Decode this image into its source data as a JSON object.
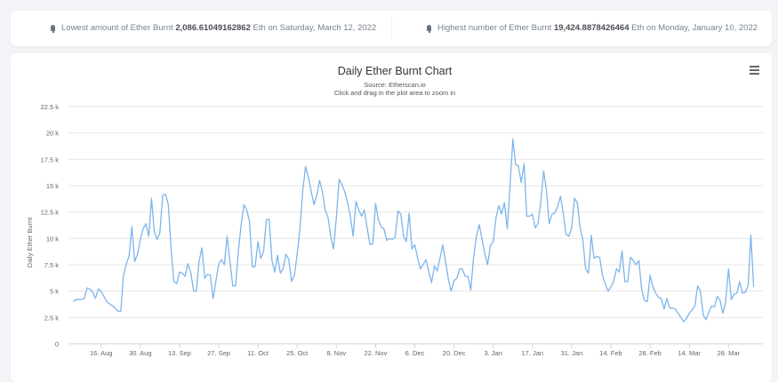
{
  "stats": {
    "lowest": {
      "prefix": "Lowest amount of Ether Burnt",
      "value": "2,086.61049162862",
      "suffix": "Eth on Saturday, March 12, 2022"
    },
    "highest": {
      "prefix": "Highest number of Ether Burnt",
      "value": "19,424.8878426464",
      "suffix": "Eth on Monday, January 10, 2022"
    }
  },
  "chart_data": {
    "type": "line",
    "title": "Daily Ether Burnt Chart",
    "subtitle_source": "Source: Etherscan.io",
    "subtitle_hint": "Click and drag in the plot area to zoom in",
    "ylabel": "Daily Ether Burnt",
    "xlabel": "",
    "ylim": [
      0,
      22500
    ],
    "y_ticks": [
      0,
      2500,
      5000,
      7500,
      10000,
      12500,
      15000,
      17500,
      20000,
      22500
    ],
    "y_tick_labels": [
      "0",
      "2.5 k",
      "5 k",
      "7.5 k",
      "10 k",
      "12.5 k",
      "15 k",
      "17.5 k",
      "20 k",
      "22.5 k"
    ],
    "x_ticks": [
      "2021-08-16",
      "2021-08-30",
      "2021-09-13",
      "2021-09-27",
      "2021-10-11",
      "2021-10-25",
      "2021-11-08",
      "2021-11-22",
      "2021-12-06",
      "2021-12-20",
      "2022-01-03",
      "2022-01-17",
      "2022-01-31",
      "2022-02-14",
      "2022-02-28",
      "2022-03-14",
      "2022-03-28"
    ],
    "x_tick_labels": [
      "16. Aug",
      "30. Aug",
      "13. Sep",
      "27. Sep",
      "11. Oct",
      "25. Oct",
      "8. Nov",
      "22. Nov",
      "6. Dec",
      "20. Dec",
      "3. Jan",
      "17. Jan",
      "31. Jan",
      "14. Feb",
      "28. Feb",
      "14. Mar",
      "28. Mar"
    ],
    "grid": true,
    "legend": "none",
    "line_color": "#7cb5ec",
    "series": [
      {
        "x": [
          "2021-08-06",
          "2021-08-07",
          "2021-08-08",
          "2021-08-09",
          "2021-08-10",
          "2021-08-11",
          "2021-08-12",
          "2021-08-13",
          "2021-08-14",
          "2021-08-15",
          "2021-08-16",
          "2021-08-17",
          "2021-08-18",
          "2021-08-19",
          "2021-08-20",
          "2021-08-21",
          "2021-08-22",
          "2021-08-23",
          "2021-08-24",
          "2021-08-25",
          "2021-08-26",
          "2021-08-27",
          "2021-08-28",
          "2021-08-29",
          "2021-08-30",
          "2021-08-31",
          "2021-09-01",
          "2021-09-02",
          "2021-09-03",
          "2021-09-04",
          "2021-09-05",
          "2021-09-06",
          "2021-09-07",
          "2021-09-08",
          "2021-09-09",
          "2021-09-10",
          "2021-09-11",
          "2021-09-12",
          "2021-09-13",
          "2021-09-14",
          "2021-09-15",
          "2021-09-16",
          "2021-09-17",
          "2021-09-18",
          "2021-09-19",
          "2021-09-20",
          "2021-09-21",
          "2021-09-22",
          "2021-09-23",
          "2021-09-24",
          "2021-09-25",
          "2021-09-26",
          "2021-09-27",
          "2021-09-28",
          "2021-09-29",
          "2021-09-30",
          "2021-10-01",
          "2021-10-02",
          "2021-10-03",
          "2021-10-04",
          "2021-10-05",
          "2021-10-06",
          "2021-10-07",
          "2021-10-08",
          "2021-10-09",
          "2021-10-10",
          "2021-10-11",
          "2021-10-12",
          "2021-10-13",
          "2021-10-14",
          "2021-10-15",
          "2021-10-16",
          "2021-10-17",
          "2021-10-18",
          "2021-10-19",
          "2021-10-20",
          "2021-10-21",
          "2021-10-22",
          "2021-10-23",
          "2021-10-24",
          "2021-10-25",
          "2021-10-26",
          "2021-10-27",
          "2021-10-28",
          "2021-10-29",
          "2021-10-30",
          "2021-10-31",
          "2021-11-01",
          "2021-11-02",
          "2021-11-03",
          "2021-11-04",
          "2021-11-05",
          "2021-11-06",
          "2021-11-07",
          "2021-11-08",
          "2021-11-09",
          "2021-11-10",
          "2021-11-11",
          "2021-11-12",
          "2021-11-13",
          "2021-11-14",
          "2021-11-15",
          "2021-11-16",
          "2021-11-17",
          "2021-11-18",
          "2021-11-19",
          "2021-11-20",
          "2021-11-21",
          "2021-11-22",
          "2021-11-23",
          "2021-11-24",
          "2021-11-25",
          "2021-11-26",
          "2021-11-27",
          "2021-11-28",
          "2021-11-29",
          "2021-11-30",
          "2021-12-01",
          "2021-12-02",
          "2021-12-03",
          "2021-12-04",
          "2021-12-05",
          "2021-12-06",
          "2021-12-07",
          "2021-12-08",
          "2021-12-09",
          "2021-12-10",
          "2021-12-11",
          "2021-12-12",
          "2021-12-13",
          "2021-12-14",
          "2021-12-15",
          "2021-12-16",
          "2021-12-17",
          "2021-12-18",
          "2021-12-19",
          "2021-12-20",
          "2021-12-21",
          "2021-12-22",
          "2021-12-23",
          "2021-12-24",
          "2021-12-25",
          "2021-12-26",
          "2021-12-27",
          "2021-12-28",
          "2021-12-29",
          "2021-12-30",
          "2021-12-31",
          "2022-01-01",
          "2022-01-02",
          "2022-01-03",
          "2022-01-04",
          "2022-01-05",
          "2022-01-06",
          "2022-01-07",
          "2022-01-08",
          "2022-01-09",
          "2022-01-10",
          "2022-01-11",
          "2022-01-12",
          "2022-01-13",
          "2022-01-14",
          "2022-01-15",
          "2022-01-16",
          "2022-01-17",
          "2022-01-18",
          "2022-01-19",
          "2022-01-20",
          "2022-01-21",
          "2022-01-22",
          "2022-01-23",
          "2022-01-24",
          "2022-01-25",
          "2022-01-26",
          "2022-01-27",
          "2022-01-28",
          "2022-01-29",
          "2022-01-30",
          "2022-01-31",
          "2022-02-01",
          "2022-02-02",
          "2022-02-03",
          "2022-02-04",
          "2022-02-05",
          "2022-02-06",
          "2022-02-07",
          "2022-02-08",
          "2022-02-09",
          "2022-02-10",
          "2022-02-11",
          "2022-02-12",
          "2022-02-13",
          "2022-02-14",
          "2022-02-15",
          "2022-02-16",
          "2022-02-17",
          "2022-02-18",
          "2022-02-19",
          "2022-02-20",
          "2022-02-21",
          "2022-02-22",
          "2022-02-23",
          "2022-02-24",
          "2022-02-25",
          "2022-02-26",
          "2022-02-27",
          "2022-02-28",
          "2022-03-01",
          "2022-03-02",
          "2022-03-03",
          "2022-03-04",
          "2022-03-05",
          "2022-03-06",
          "2022-03-07",
          "2022-03-08",
          "2022-03-09",
          "2022-03-10",
          "2022-03-11",
          "2022-03-12",
          "2022-03-13",
          "2022-03-14",
          "2022-03-15",
          "2022-03-16",
          "2022-03-17",
          "2022-03-18",
          "2022-03-19",
          "2022-03-20",
          "2022-03-21",
          "2022-03-22",
          "2022-03-23",
          "2022-03-24",
          "2022-03-25",
          "2022-03-26",
          "2022-03-27",
          "2022-03-28",
          "2022-03-29",
          "2022-03-30",
          "2022-03-31",
          "2022-04-01",
          "2022-04-02",
          "2022-04-03",
          "2022-04-04",
          "2022-04-05",
          "2022-04-06"
        ],
        "values": [
          4000,
          4200,
          4200,
          4200,
          4300,
          5300,
          5200,
          4900,
          4300,
          5200,
          5000,
          4500,
          4000,
          3800,
          3600,
          3400,
          3100,
          3100,
          6500,
          7600,
          8300,
          11100,
          7800,
          8500,
          9900,
          10900,
          11400,
          10200,
          13800,
          10600,
          9900,
          10500,
          14100,
          14200,
          13200,
          9000,
          5900,
          5700,
          6800,
          6700,
          6400,
          7600,
          6800,
          5000,
          5000,
          7800,
          9100,
          6200,
          6600,
          6500,
          4300,
          6000,
          7600,
          8000,
          7500,
          10200,
          7800,
          5500,
          5500,
          8800,
          11300,
          13200,
          12700,
          11600,
          7300,
          7300,
          9700,
          8100,
          8700,
          11800,
          11800,
          7900,
          6800,
          8400,
          6700,
          7100,
          8500,
          8000,
          5900,
          6500,
          8500,
          11000,
          14500,
          16800,
          15800,
          14500,
          13200,
          14100,
          15500,
          14400,
          12700,
          12000,
          10200,
          9000,
          12000,
          15600,
          15100,
          14400,
          13400,
          12100,
          10200,
          13500,
          12700,
          12100,
          12700,
          11000,
          9400,
          9500,
          13300,
          11800,
          11100,
          10900,
          9800,
          10000,
          9900,
          10100,
          12600,
          12300,
          10200,
          9700,
          12400,
          9000,
          9400,
          8200,
          7100,
          7500,
          8000,
          6800,
          5800,
          7400,
          6900,
          8100,
          9400,
          7800,
          6100,
          5000,
          6000,
          6200,
          7100,
          7100,
          6400,
          6400,
          5100,
          8200,
          10200,
          11300,
          9900,
          8500,
          7500,
          9300,
          9700,
          12000,
          13100,
          12300,
          13400,
          10900,
          14900,
          19425,
          17000,
          16900,
          15300,
          17100,
          12100,
          12100,
          12300,
          11000,
          11400,
          13500,
          16400,
          14600,
          11400,
          12300,
          12400,
          13000,
          14000,
          12400,
          10400,
          10200,
          11000,
          13800,
          13400,
          11000,
          9900,
          7100,
          6700,
          10300,
          8100,
          8300,
          8200,
          6500,
          5700,
          5000,
          5400,
          5900,
          7100,
          6800,
          8800,
          5900,
          5900,
          8200,
          7900,
          7500,
          7900,
          5200,
          4100,
          4000,
          6500,
          5400,
          4800,
          4400,
          4300,
          3300,
          4300,
          3400,
          3400,
          3300,
          2900,
          2500,
          2087,
          2400,
          2900,
          3200,
          3600,
          5500,
          5000,
          2700,
          2300,
          3000,
          3600,
          3500,
          4500,
          4100,
          2900,
          4000,
          7100,
          4200,
          4700,
          4800,
          5900,
          4800,
          4900,
          5500,
          10300,
          5400
        ]
      }
    ]
  }
}
